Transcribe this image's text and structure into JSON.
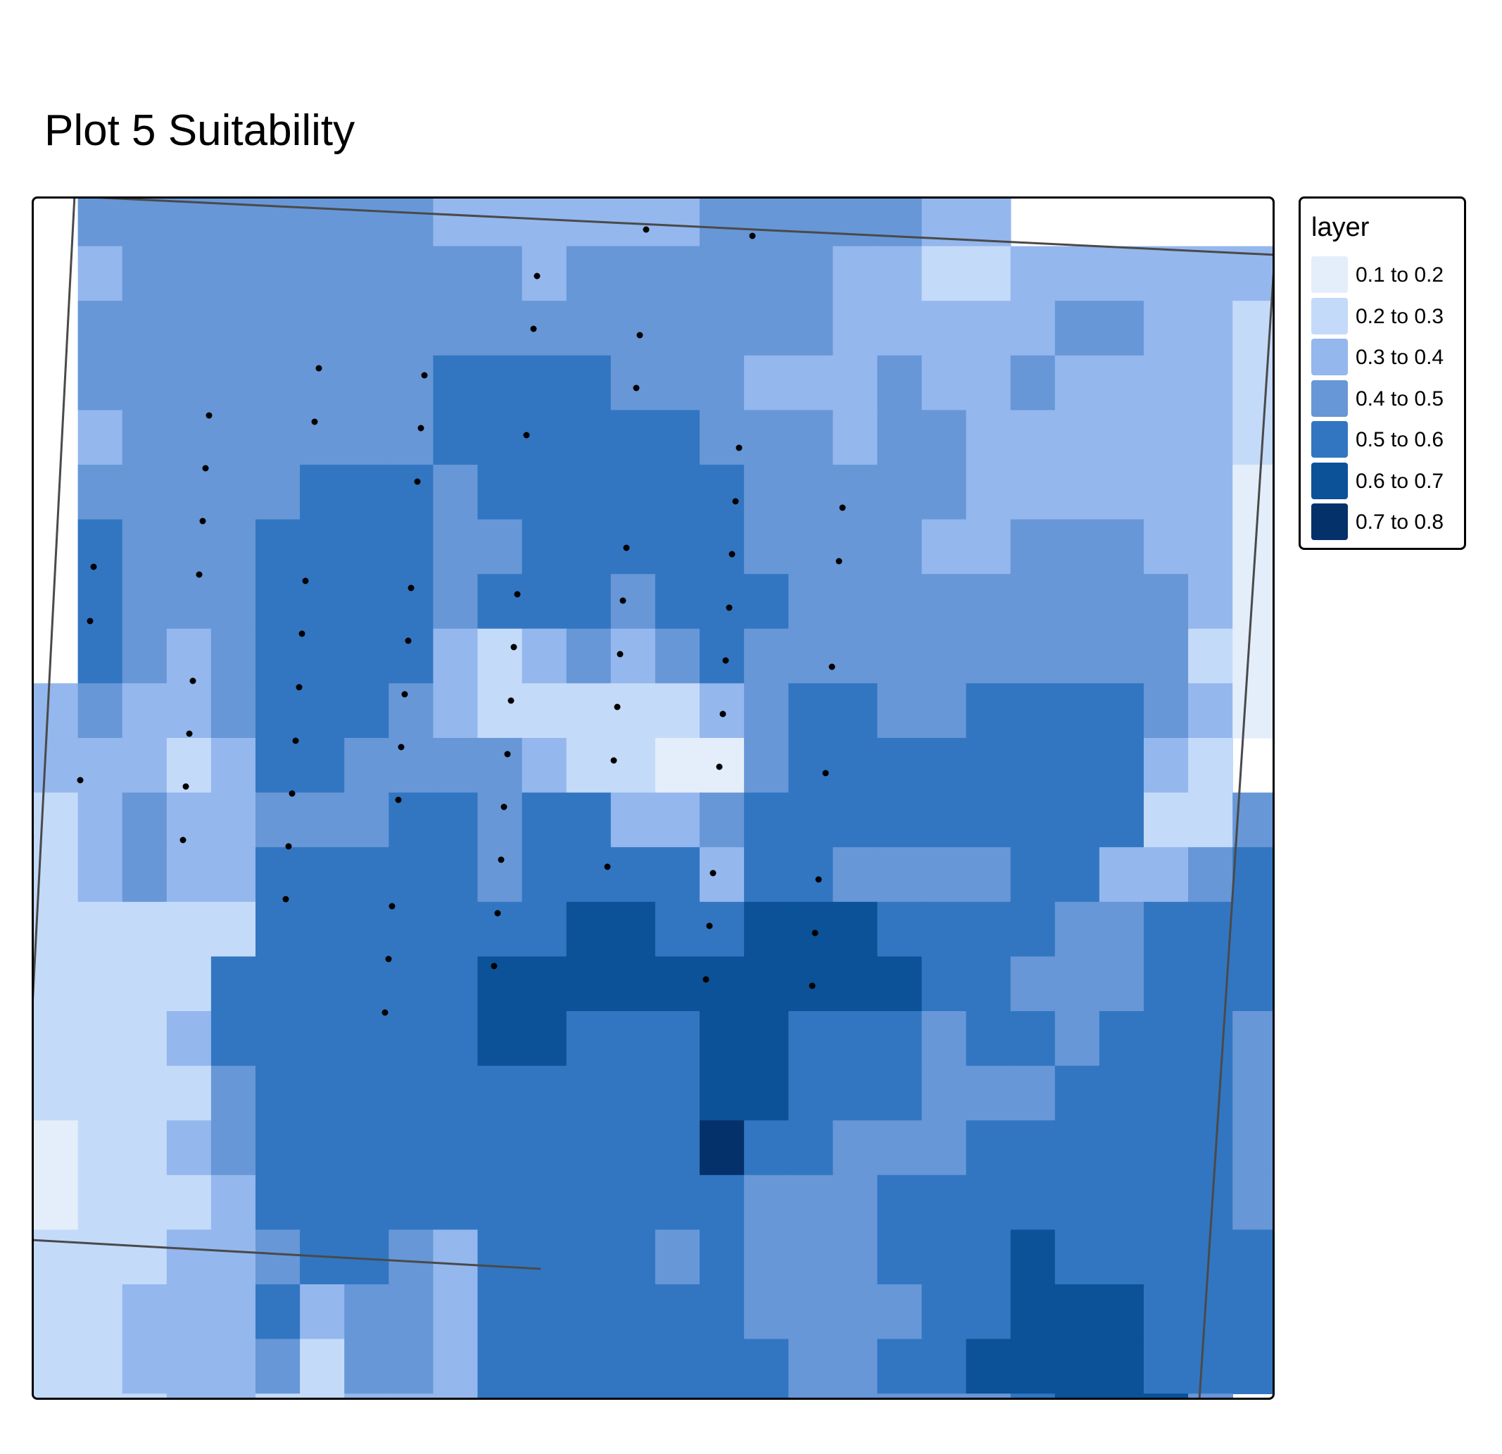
{
  "title": "Plot 5 Suitability",
  "legend": {
    "title": "layer",
    "items": [
      {
        "label": "0.1 to 0.2",
        "color": "#e4eefb"
      },
      {
        "label": "0.2 to 0.3",
        "color": "#c4daf9"
      },
      {
        "label": "0.3 to 0.4",
        "color": "#94b7ed"
      },
      {
        "label": "0.4 to 0.5",
        "color": "#6797d7"
      },
      {
        "label": "0.5 to 0.6",
        "color": "#3276c2"
      },
      {
        "label": "0.6 to 0.7",
        "color": "#0b5298"
      },
      {
        "label": "0.7 to 0.8",
        "color": "#05316b"
      }
    ]
  },
  "map_data": {
    "no_data_color": "#ffffff",
    "class_keys": "0 = no data, 1 = 0.1 to 0.2, 2 = 0.2 to 0.3, 3 = 0.3 to 0.4, 4 = 0.4 to 0.5, 5 = 0.5 to 0.6, 6 = 0.6 to 0.7, 7 = 0.7 to 0.8",
    "grid": [
      "0444444443333334444433000000",
      "0344444444434444443322333333",
      "0444444444444444443333344332",
      "0444444445555444333433433332",
      "0344444445555554443443333332",
      "0444445554555555444443333331",
      "0544455554455555444433444331",
      "0544455554555455544444444431",
      "0543455553234345444444444421",
      "3433455543222223455445555431",
      "3332355444432211455555555320",
      "2343344455455334555555555224",
      "2343355555455553554444553345",
      "2222255555556655666555544555",
      "2222555555666666666655444555",
      "2223555555665556655545545554",
      "2222455555555556655544455554",
      "1223455555555557554445555554",
      "1222355555555555444555555554",
      "2223345543555545444555655555",
      "2233353443555555444455666555",
      "2233342443555555544556666555",
      "2223322333555555544444566640",
      "2334321223555555444444456640"
    ],
    "points": [
      [
        319,
        212
      ],
      [
        923,
        250
      ],
      [
        918,
        326
      ],
      [
        1069,
        335
      ],
      [
        763,
        392
      ],
      [
        758,
        467
      ],
      [
        909,
        476
      ],
      [
        453,
        523
      ],
      [
        603,
        533
      ],
      [
        904,
        551
      ],
      [
        297,
        590
      ],
      [
        447,
        599
      ],
      [
        598,
        608
      ],
      [
        748,
        618
      ],
      [
        1050,
        636
      ],
      [
        292,
        665
      ],
      [
        593,
        684
      ],
      [
        1045,
        712
      ],
      [
        1197,
        721
      ],
      [
        288,
        740
      ],
      [
        890,
        778
      ],
      [
        1040,
        787
      ],
      [
        1192,
        797
      ],
      [
        133,
        805
      ],
      [
        283,
        816
      ],
      [
        434,
        825
      ],
      [
        584,
        835
      ],
      [
        735,
        844
      ],
      [
        885,
        853
      ],
      [
        1036,
        863
      ],
      [
        128,
        882
      ],
      [
        429,
        900
      ],
      [
        580,
        910
      ],
      [
        730,
        919
      ],
      [
        881,
        929
      ],
      [
        1031,
        938
      ],
      [
        1182,
        947
      ],
      [
        274,
        967
      ],
      [
        425,
        976
      ],
      [
        575,
        986
      ],
      [
        726,
        995
      ],
      [
        877,
        1004
      ],
      [
        1027,
        1014
      ],
      [
        269,
        1042
      ],
      [
        420,
        1052
      ],
      [
        570,
        1061
      ],
      [
        721,
        1071
      ],
      [
        872,
        1080
      ],
      [
        1022,
        1089
      ],
      [
        1173,
        1098
      ],
      [
        114,
        1108
      ],
      [
        264,
        1117
      ],
      [
        415,
        1127
      ],
      [
        566,
        1136
      ],
      [
        716,
        1146
      ],
      [
        260,
        1193
      ],
      [
        410,
        1202
      ],
      [
        712,
        1221
      ],
      [
        863,
        1231
      ],
      [
        1013,
        1240
      ],
      [
        1163,
        1249
      ],
      [
        406,
        1277
      ],
      [
        557,
        1287
      ],
      [
        707,
        1297
      ],
      [
        1008,
        1315
      ],
      [
        1158,
        1325
      ],
      [
        552,
        1362
      ],
      [
        702,
        1372
      ],
      [
        1003,
        1391
      ],
      [
        1154,
        1400
      ],
      [
        547,
        1438
      ]
    ]
  }
}
